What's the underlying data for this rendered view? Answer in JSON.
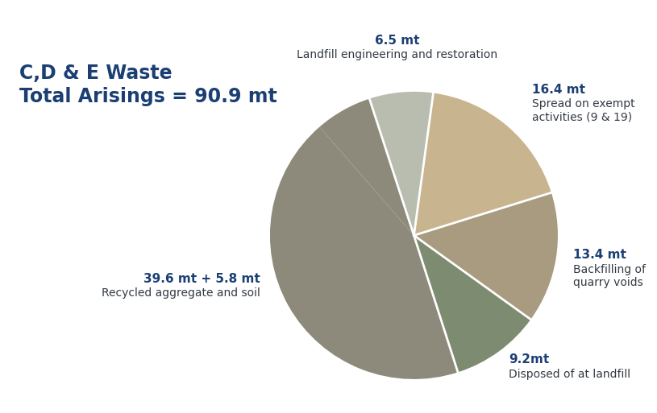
{
  "chart_data": {
    "type": "pie",
    "title": "C,D & E Waste",
    "subtitle": "Total Arisings = 90.9 mt",
    "categories": [
      "Landfill engineering and restoration",
      "Spread on exempt activities (9 & 19)",
      "Backfilling of quarry voids",
      "Disposed of at landfill",
      "Recycled aggregate and soil",
      null
    ],
    "values": [
      6.5,
      16.4,
      13.4,
      9.2,
      39.6,
      5.8
    ],
    "value_labels": [
      "6.5 mt",
      "16.4 mt",
      "13.4 mt",
      "9.2mt",
      "39.6 mt + 5.8 mt",
      null
    ],
    "colors": [
      "#b9bdb0",
      "#c8b590",
      "#a89b80",
      "#7d8b70",
      "#8e8a7b",
      "#8e8a7b"
    ],
    "data_labels": true
  }
}
